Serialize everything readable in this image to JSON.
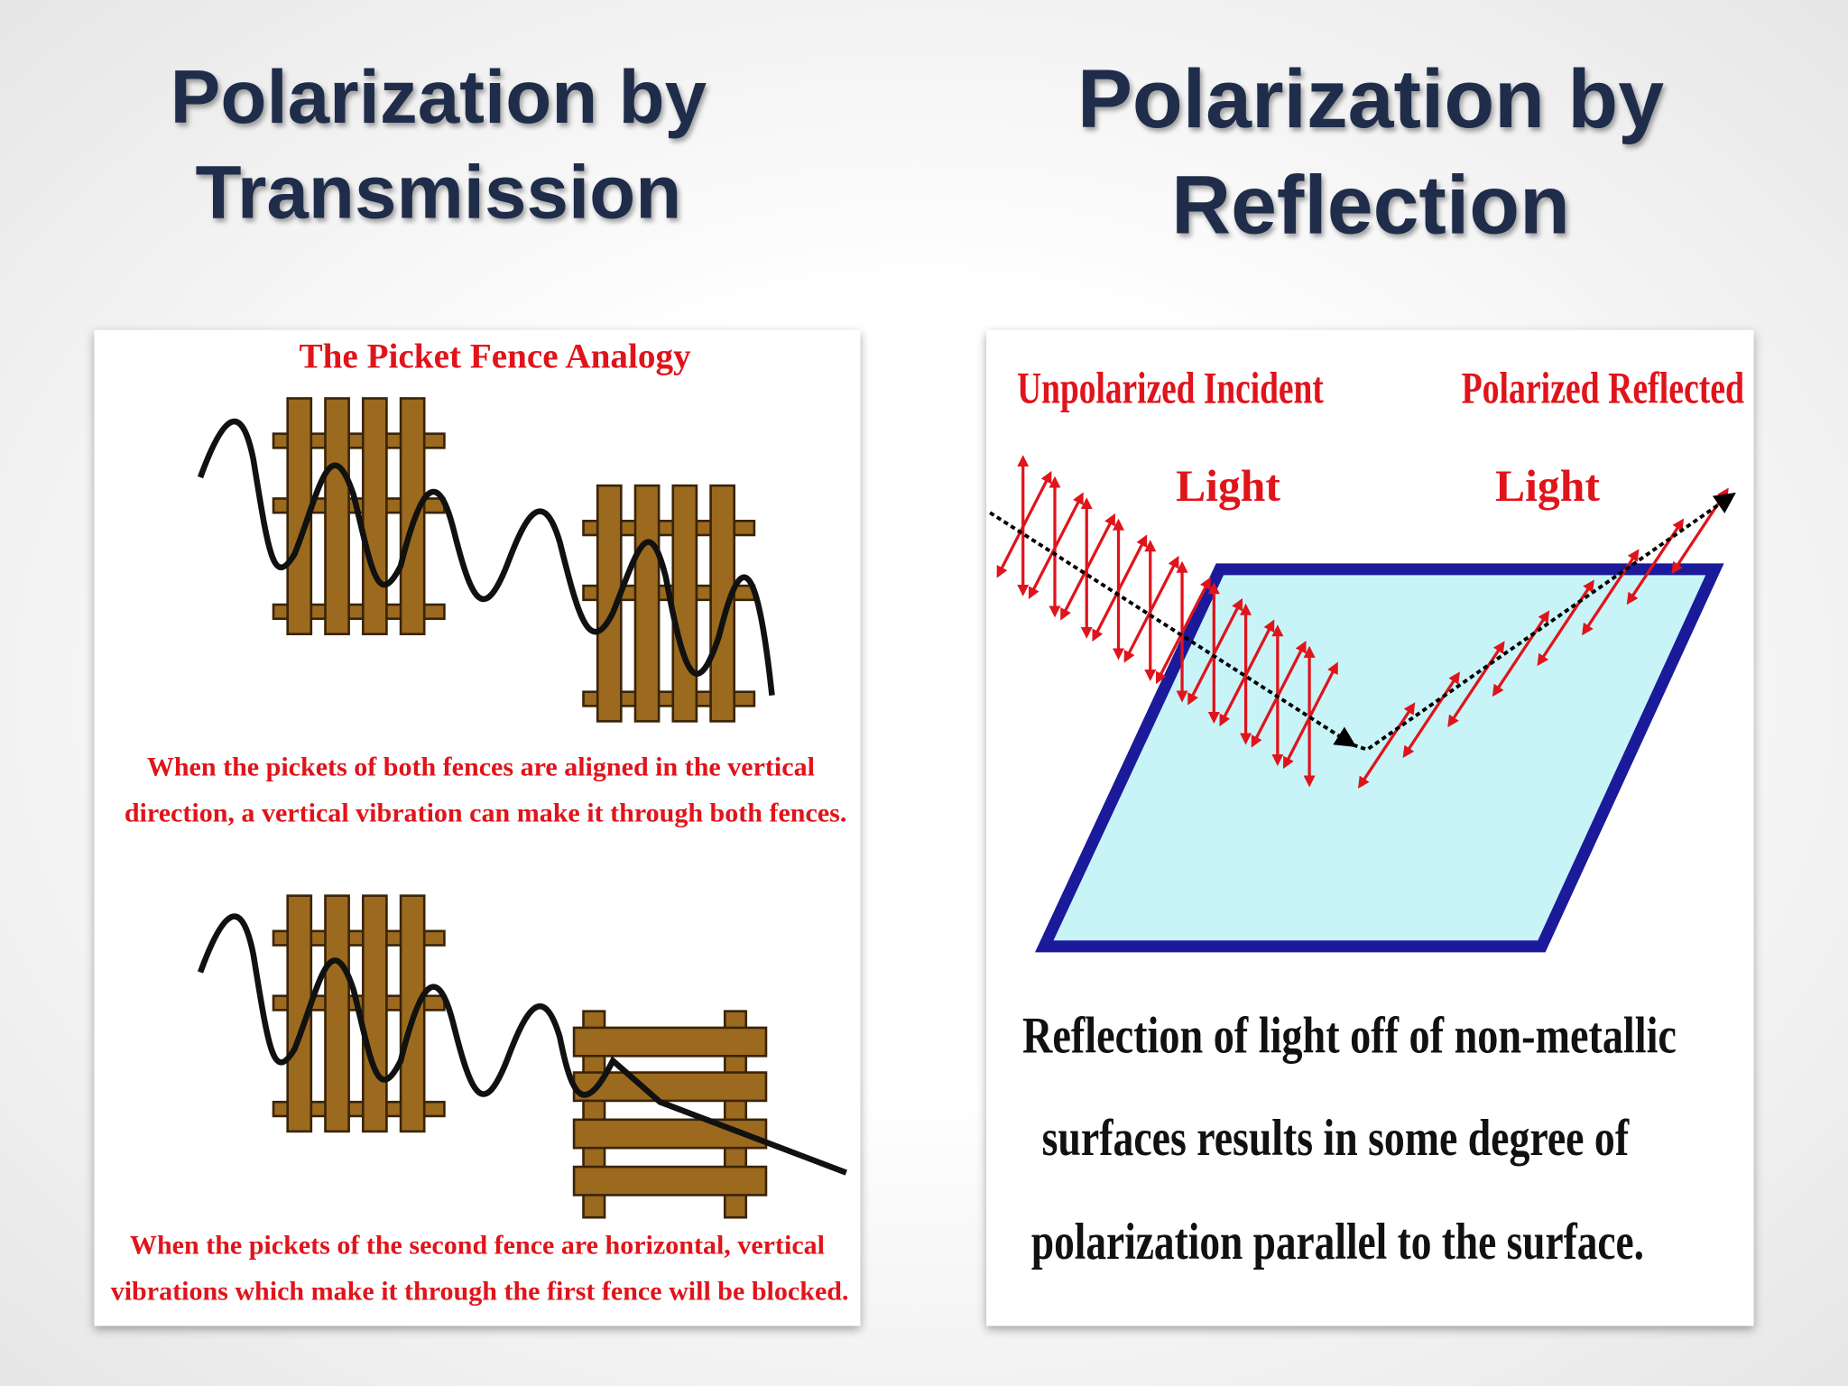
{
  "left": {
    "title_lines": [
      "Polarization by",
      "Transmission"
    ],
    "figure": {
      "heading": "The Picket Fence Analogy",
      "caption_top_lines": [
        "When the pickets of both fences are aligned in the vertical",
        "direction, a vertical vibration can make it through both fences."
      ],
      "caption_bottom_lines": [
        "When the pickets of the second fence are horizontal, vertical",
        "vibrations which make it through the first fence will be blocked."
      ]
    }
  },
  "right": {
    "title_lines": [
      "Polarization by",
      "Reflection"
    ],
    "figure": {
      "incident_label_lines": [
        "Unpolarized Incident",
        "Light"
      ],
      "reflected_label_lines": [
        "Polarized Reflected",
        "Light"
      ],
      "caption_lines": [
        "Reflection of light off of non-metallic",
        "surfaces results in some degree of",
        "polarization parallel to the surface."
      ]
    }
  }
}
